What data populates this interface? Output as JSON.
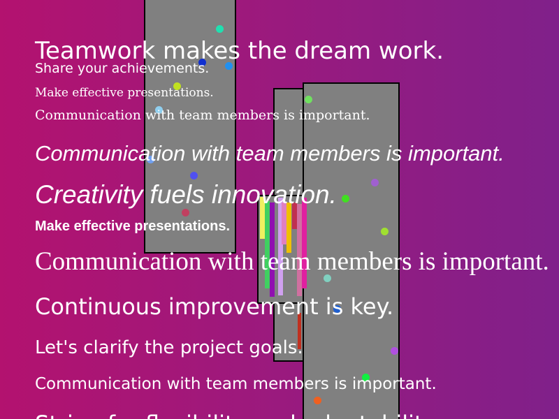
{
  "colors": {
    "background_left": "#b3126f",
    "background_right": "#80208a",
    "panel": "#808080",
    "text": "#ffffff"
  },
  "lines": [
    "Teamwork makes the dream work.",
    "Share your achievements.",
    "Make effective presentations.",
    "Communication with team members is important.",
    "Communication with team members is important.",
    "Creativity fuels innovation.",
    "Make effective presentations.",
    "Communication with team members is important.",
    "Continuous improvement is key.",
    "Let's clarify the project goals.",
    "Communication with team members is important.",
    "Strive for flexibility and adaptability."
  ],
  "bar_colors": [
    "#f0f060",
    "#40d060",
    "#9010b0",
    "#d0a0f0",
    "#e080c0",
    "#f0c000",
    "#c03050",
    "#d070a0",
    "#e020a0",
    "#c03020"
  ],
  "dot_colors": [
    "#20e0b0",
    "#1030d0",
    "#2090f0",
    "#c0e020",
    "#90d0f0",
    "#70e060",
    "#70a0f0",
    "#5050f0",
    "#a060d0",
    "#40e020",
    "#c04060",
    "#a0e030",
    "#80d0c0",
    "#2060d0",
    "#b050e0",
    "#10f040",
    "#f06020"
  ]
}
